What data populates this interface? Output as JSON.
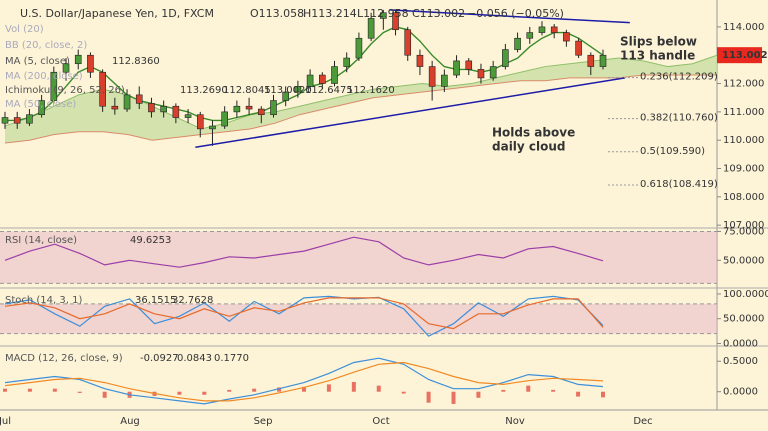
{
  "chart_data": [
    {
      "type": "candlestick",
      "title": "U.S. Dollar/Japanese Yen, 1D, FXCM",
      "ohlc_label": [
        "O113.058",
        "H113.214",
        "L112.958",
        "C113.002",
        "−0.056 (−0.05%)"
      ],
      "indicators": [
        {
          "name": "Vol (20)"
        },
        {
          "name": "BB (20, close, 2)"
        },
        {
          "name": "MA (5, close)",
          "values": [
            "112.8360"
          ]
        },
        {
          "name": "MA (200, close)"
        },
        {
          "name": "Ichimoku (9, 26, 52, 26)",
          "values": [
            "113.2690",
            "112.8045",
            "113.0020",
            "112.6475",
            "112.1620"
          ]
        },
        {
          "name": "MA (50, close)"
        }
      ],
      "categories": [
        "Jul",
        "Aug",
        "Sep",
        "Oct",
        "Nov",
        "Dec"
      ],
      "candles": [
        [
          110.6,
          111.0,
          110.4,
          110.8
        ],
        [
          110.8,
          111.0,
          110.4,
          110.6
        ],
        [
          110.6,
          111.1,
          110.5,
          110.9
        ],
        [
          110.9,
          111.6,
          110.8,
          111.4
        ],
        [
          111.4,
          112.6,
          111.3,
          112.4
        ],
        [
          112.4,
          112.9,
          112.1,
          112.7
        ],
        [
          112.7,
          113.2,
          112.5,
          113.0
        ],
        [
          113.0,
          113.1,
          112.2,
          112.4
        ],
        [
          112.4,
          112.5,
          111.0,
          111.2
        ],
        [
          111.2,
          111.5,
          110.9,
          111.1
        ],
        [
          111.1,
          111.8,
          111.0,
          111.6
        ],
        [
          111.6,
          111.9,
          111.1,
          111.3
        ],
        [
          111.3,
          111.5,
          110.8,
          111.0
        ],
        [
          111.0,
          111.4,
          110.8,
          111.2
        ],
        [
          111.2,
          111.3,
          110.6,
          110.8
        ],
        [
          110.8,
          111.1,
          110.6,
          110.9
        ],
        [
          110.9,
          111.0,
          110.1,
          110.4
        ],
        [
          110.4,
          110.7,
          109.8,
          110.5
        ],
        [
          110.5,
          111.2,
          110.4,
          111.0
        ],
        [
          111.0,
          111.4,
          110.8,
          111.2
        ],
        [
          111.2,
          111.5,
          110.9,
          111.1
        ],
        [
          111.1,
          111.2,
          110.6,
          110.9
        ],
        [
          110.9,
          111.6,
          110.8,
          111.4
        ],
        [
          111.4,
          111.9,
          111.2,
          111.7
        ],
        [
          111.7,
          112.1,
          111.5,
          111.9
        ],
        [
          111.9,
          112.5,
          111.8,
          112.3
        ],
        [
          112.3,
          112.4,
          111.8,
          112.0
        ],
        [
          112.0,
          112.8,
          111.9,
          112.6
        ],
        [
          112.6,
          113.1,
          112.4,
          112.9
        ],
        [
          112.9,
          113.8,
          112.8,
          113.6
        ],
        [
          113.6,
          114.5,
          113.5,
          114.3
        ],
        [
          114.3,
          114.6,
          113.9,
          114.5
        ],
        [
          114.5,
          114.6,
          113.7,
          113.9
        ],
        [
          113.9,
          114.0,
          112.8,
          113.0
        ],
        [
          113.0,
          113.2,
          112.3,
          112.6
        ],
        [
          112.6,
          112.8,
          111.4,
          111.9
        ],
        [
          111.9,
          112.5,
          111.7,
          112.3
        ],
        [
          112.3,
          113.0,
          112.2,
          112.8
        ],
        [
          112.8,
          112.9,
          112.3,
          112.5
        ],
        [
          112.5,
          112.7,
          112.0,
          112.2
        ],
        [
          112.2,
          112.8,
          112.1,
          112.6
        ],
        [
          112.6,
          113.4,
          112.5,
          113.2
        ],
        [
          113.2,
          113.8,
          113.1,
          113.6
        ],
        [
          113.6,
          114.0,
          113.4,
          113.8
        ],
        [
          113.8,
          114.2,
          113.7,
          114.0
        ],
        [
          114.0,
          114.1,
          113.6,
          113.8
        ],
        [
          113.8,
          113.9,
          113.3,
          113.5
        ],
        [
          113.5,
          113.6,
          112.9,
          113.0
        ],
        [
          113.0,
          113.1,
          112.3,
          112.6
        ],
        [
          112.6,
          113.2,
          112.5,
          113.0
        ]
      ],
      "ma": {
        "color": "#3a8a2a",
        "values": [
          110.7,
          110.7,
          110.8,
          111.0,
          111.4,
          111.9,
          112.4,
          112.6,
          112.4,
          112.0,
          111.6,
          111.4,
          111.3,
          111.2,
          111.1,
          111.0,
          110.8,
          110.7,
          110.7,
          110.8,
          110.9,
          111.0,
          111.2,
          111.4,
          111.6,
          111.9,
          112.0,
          112.2,
          112.5,
          112.9,
          113.4,
          113.8,
          114.0,
          113.9,
          113.5,
          113.0,
          112.6,
          112.5,
          112.5,
          112.4,
          112.5,
          112.7,
          112.9,
          113.3,
          113.6,
          113.8,
          113.8,
          113.6,
          113.3,
          113.0
        ]
      },
      "cloud_a": [
        110.5,
        110.8,
        111.2,
        111.6,
        111.8,
        111.6,
        111.2,
        110.8,
        110.4,
        110.6,
        110.9,
        111.0,
        111.2,
        111.4,
        111.6,
        111.8,
        111.9,
        112.0,
        111.9,
        112.0,
        112.2,
        112.4,
        112.6,
        112.7,
        112.8,
        112.9,
        112.8,
        112.6,
        112.7,
        113.0
      ],
      "cloud_b": [
        109.9,
        110.0,
        110.2,
        110.3,
        110.3,
        110.2,
        110.0,
        110.1,
        110.2,
        110.3,
        110.4,
        110.6,
        110.9,
        111.1,
        111.3,
        111.5,
        111.6,
        111.7,
        111.8,
        111.9,
        112.0,
        112.1,
        112.1,
        112.2,
        112.2,
        112.2,
        112.3,
        112.3,
        112.3,
        112.3
      ],
      "trendlines": [
        {
          "x": [
            31.5,
            51.2
          ],
          "y": [
            114.6,
            114.15
          ]
        },
        {
          "x": [
            15.6,
            50.8
          ],
          "y": [
            109.75,
            112.2
          ]
        }
      ],
      "fib_levels": [
        {
          "value": 112.209,
          "label": "0.236(112.209)"
        },
        {
          "value": 110.76,
          "label": "0.382(110.760)"
        },
        {
          "value": 109.59,
          "label": "0.5(109.590)"
        },
        {
          "value": 108.419,
          "label": "0.618(108.419)"
        }
      ],
      "annotations": [
        [
          "Slips below",
          "113 handle"
        ],
        [
          "Holds above",
          "daily cloud"
        ]
      ],
      "last": {
        "value": 113.002,
        "label": "113.002"
      },
      "ylim": [
        106.9,
        114.95
      ],
      "yticks": [
        {
          "value": 107,
          "label": "107.000"
        },
        {
          "value": 108,
          "label": "108.000"
        },
        {
          "value": 109,
          "label": "109.000"
        },
        {
          "value": 110,
          "label": "110.000"
        },
        {
          "value": 111,
          "label": "111.000"
        },
        {
          "value": 112,
          "label": "112.000"
        },
        {
          "value": 114,
          "label": "114.000"
        }
      ]
    },
    {
      "type": "line",
      "title": "RSI (14, close)",
      "value_label": "49.6253",
      "series": [
        {
          "name": "RSI",
          "color": "#9b3fa8",
          "values": [
            50,
            58,
            64,
            56,
            46,
            50,
            47,
            44,
            48,
            53,
            52,
            55,
            58,
            64,
            70,
            66,
            52,
            46,
            50,
            55,
            52,
            60,
            62,
            56,
            49.6
          ]
        }
      ],
      "ylim": [
        26,
        78
      ],
      "yticks": [
        {
          "value": 75,
          "label": "75.0000"
        },
        {
          "value": 50,
          "label": "50.0000"
        }
      ],
      "band": [
        30,
        75
      ]
    },
    {
      "type": "line",
      "title": "Stoch (14, 3, 1)",
      "value_labels": [
        "36.1515",
        "32.7628"
      ],
      "series": [
        {
          "name": "%K",
          "color": "#3d8fd9",
          "values": [
            80,
            88,
            60,
            35,
            75,
            90,
            40,
            55,
            82,
            45,
            85,
            60,
            92,
            95,
            90,
            93,
            70,
            15,
            40,
            82,
            55,
            90,
            95,
            88,
            36.15
          ]
        },
        {
          "name": "%D",
          "color": "#e86a2a",
          "values": [
            75,
            82,
            72,
            50,
            60,
            80,
            60,
            50,
            70,
            55,
            72,
            65,
            82,
            92,
            92,
            92,
            80,
            40,
            30,
            60,
            60,
            78,
            90,
            90,
            32.76
          ]
        }
      ],
      "ylim": [
        -5,
        112
      ],
      "yticks": [
        {
          "value": 100,
          "label": "100.0000"
        },
        {
          "value": 50,
          "label": "50.0000"
        },
        {
          "value": 0,
          "label": "0.0000"
        }
      ],
      "band": [
        20,
        80
      ]
    },
    {
      "type": "macd",
      "title": "MACD (12, 26, close, 9)",
      "value_labels": [
        "-0.0927",
        "0.0843",
        "0.1770"
      ],
      "histogram": {
        "color": "#e0463a",
        "values": [
          0.05,
          0.05,
          0.05,
          -0.02,
          -0.1,
          -0.1,
          -0.07,
          -0.05,
          -0.05,
          0.03,
          0.05,
          0.07,
          0.08,
          0.12,
          0.16,
          0.1,
          -0.03,
          -0.18,
          -0.2,
          -0.1,
          0.03,
          0.1,
          0.03,
          -0.08,
          -0.0927
        ]
      },
      "series": [
        {
          "name": "MACD",
          "color": "#3d8fd9",
          "values": [
            0.15,
            0.2,
            0.25,
            0.2,
            0.05,
            -0.05,
            -0.1,
            -0.15,
            -0.2,
            -0.12,
            -0.05,
            0.05,
            0.15,
            0.3,
            0.48,
            0.55,
            0.45,
            0.2,
            0.05,
            0.05,
            0.15,
            0.28,
            0.25,
            0.12,
            0.0843
          ]
        },
        {
          "name": "Signal",
          "color": "#f08a24",
          "values": [
            0.1,
            0.15,
            0.2,
            0.22,
            0.15,
            0.05,
            -0.03,
            -0.1,
            -0.15,
            -0.15,
            -0.1,
            -0.02,
            0.07,
            0.18,
            0.32,
            0.45,
            0.48,
            0.38,
            0.25,
            0.15,
            0.12,
            0.18,
            0.22,
            0.2,
            0.177
          ]
        }
      ],
      "ylim": [
        -0.3,
        0.75
      ],
      "yticks": [
        {
          "value": 0.5,
          "label": "0.5000"
        },
        {
          "value": 0,
          "label": "0.0000"
        }
      ]
    }
  ]
}
